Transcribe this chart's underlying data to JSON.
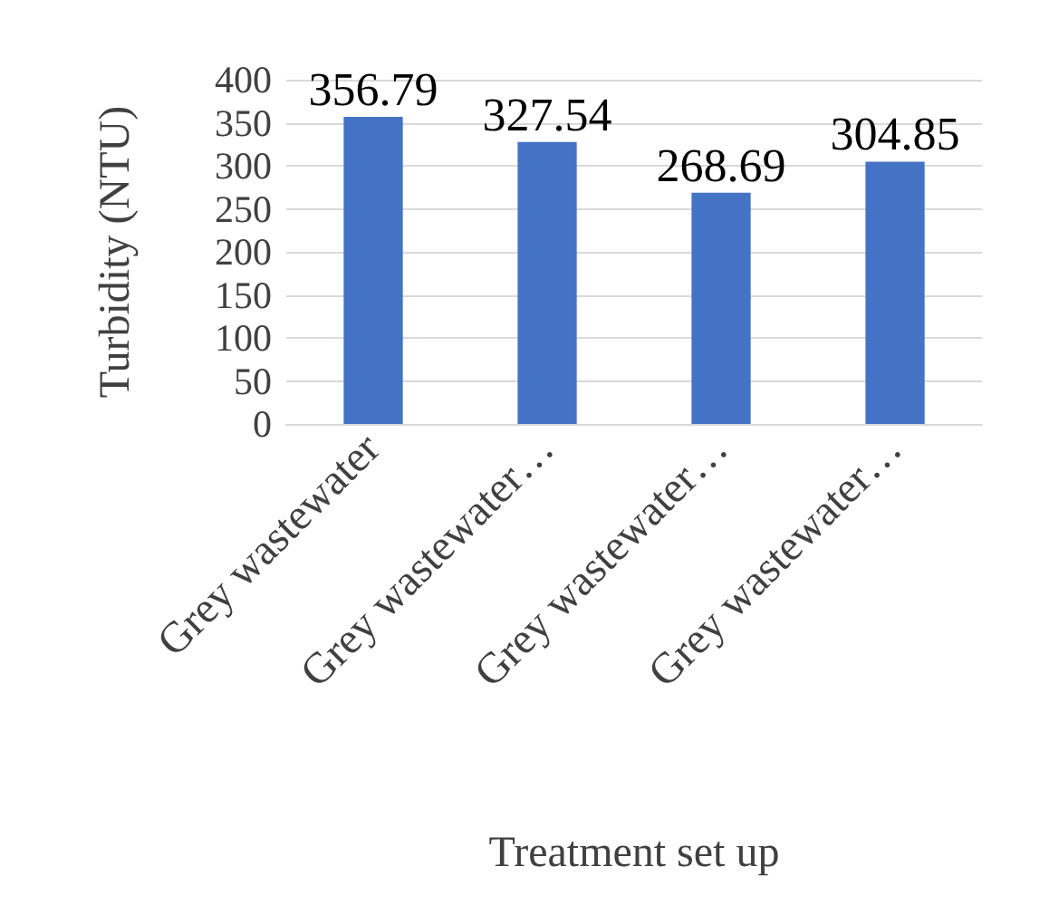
{
  "chart_data": {
    "type": "bar",
    "xlabel": "Treatment set up",
    "ylabel": "Turbidity (NTU)",
    "categories": [
      "Grey wastewater",
      "Grey wastewater…",
      "Grey wastewater…",
      "Grey wastewater…"
    ],
    "values": [
      356.79,
      327.54,
      268.69,
      304.85
    ],
    "color": "#4472c4",
    "ylim": [
      0,
      400
    ],
    "yticks": [
      0,
      50,
      100,
      150,
      200,
      250,
      300,
      350,
      400
    ],
    "grid": "y",
    "data_labels": true
  }
}
